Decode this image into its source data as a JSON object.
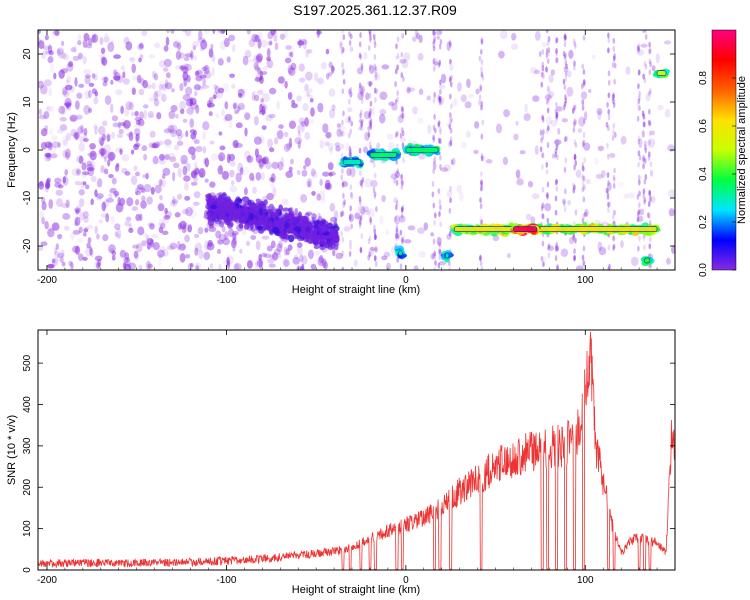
{
  "figure": {
    "title": "S197.2025.361.12.37.R09"
  },
  "chart_data": [
    {
      "type": "heatmap",
      "xlabel": "Height of straight line (km)",
      "ylabel": "Frequency (Hz)",
      "xlim": [
        -205,
        150
      ],
      "ylim": [
        -25,
        25
      ],
      "xticks": [
        -200,
        -100,
        0,
        100
      ],
      "yticks": [
        -20,
        -10,
        0,
        10,
        20
      ],
      "colorbar": {
        "label": "Normalized spectral amplitude",
        "range": [
          0,
          1
        ],
        "ticks": [
          0.0,
          0.2,
          0.4,
          0.6,
          0.8
        ],
        "tick_labels": [
          "0.0",
          "0.2",
          "0.4",
          "0.6",
          "0.8"
        ],
        "colormap": [
          "#8a2be2",
          "#0000ff",
          "#00e5ff",
          "#00ff40",
          "#c8ff00",
          "#ffe000",
          "#ff6000",
          "#ff0000",
          "#ff0080"
        ]
      },
      "features": [
        {
          "name": "",
          "x": [
            -35,
            -25
          ],
          "freq": -2.5,
          "amplitude": 0.3
        },
        {
          "name": "",
          "x": [
            -20,
            -5
          ],
          "freq": -1,
          "amplitude": 0.35
        },
        {
          "name": "",
          "x": [
            0,
            18
          ],
          "freq": 0,
          "amplitude": 0.35
        },
        {
          "name": "",
          "x": [
            -110,
            -38
          ],
          "freq_range": [
            -20,
            -8
          ],
          "amplitude": 0.15
        },
        {
          "name": "",
          "x": [
            27,
            140
          ],
          "freq": -16.5,
          "amplitude": 0.6
        },
        {
          "name": "",
          "x": [
            60,
            73
          ],
          "freq": -16.5,
          "amplitude": 0.95
        },
        {
          "name": "",
          "x": [
            140,
            145
          ],
          "freq": 16,
          "amplitude": 0.5
        },
        {
          "name": "",
          "x": [
            -4,
            -2
          ],
          "freq": -21.5,
          "amplitude": 0.3
        },
        {
          "name": "",
          "x": [
            22,
            24
          ],
          "freq": -22,
          "amplitude": 0.3
        },
        {
          "name": "",
          "x": [
            133,
            136
          ],
          "freq": -23,
          "amplitude": 0.4
        }
      ]
    },
    {
      "type": "line",
      "xlabel": "Height of straight line (km)",
      "ylabel": "SNR (10 * v/v)",
      "xlim": [
        -205,
        150
      ],
      "ylim": [
        0,
        580
      ],
      "xticks": [
        -200,
        -100,
        0,
        100
      ],
      "yticks": [
        0,
        100,
        200,
        300,
        400,
        500
      ],
      "color": "#ee3333",
      "series": [
        {
          "name": "",
          "x": [
            -205,
            -180,
            -160,
            -140,
            -120,
            -100,
            -80,
            -60,
            -40,
            -30,
            -20,
            -10,
            0,
            10,
            20,
            30,
            40,
            50,
            60,
            70,
            80,
            90,
            95,
            100,
            103,
            106,
            110,
            115,
            120,
            125,
            130,
            140,
            145,
            148,
            150
          ],
          "values": [
            15,
            18,
            16,
            18,
            19,
            22,
            27,
            35,
            45,
            55,
            75,
            95,
            110,
            125,
            150,
            190,
            220,
            250,
            270,
            285,
            295,
            305,
            320,
            400,
            520,
            300,
            210,
            110,
            40,
            70,
            80,
            65,
            40,
            320,
            310
          ]
        }
      ],
      "dropouts_x": [
        -35,
        -31,
        -25,
        -20,
        -17,
        -5,
        -2,
        16,
        19,
        25,
        42,
        76,
        79,
        84,
        89,
        94,
        99,
        113,
        116,
        130,
        133,
        136
      ]
    }
  ]
}
